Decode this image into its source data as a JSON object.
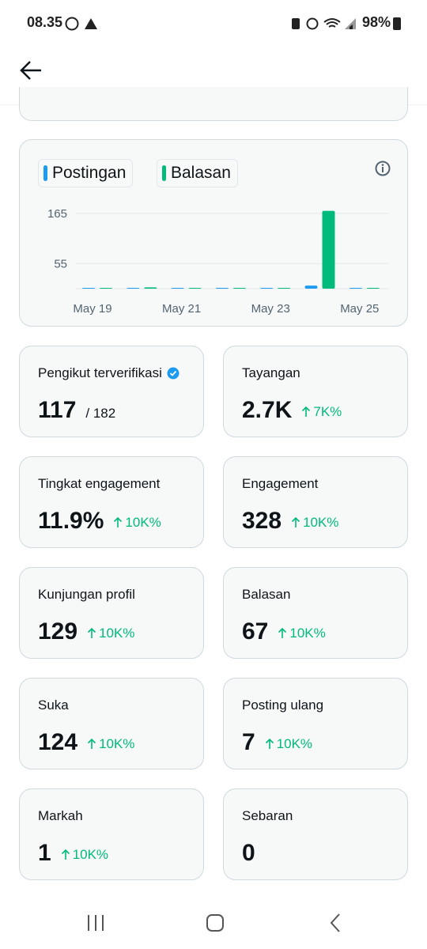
{
  "status_bar": {
    "time": "08.35",
    "battery": "98%"
  },
  "chart_data": {
    "type": "bar",
    "categories": [
      "May 19",
      null,
      "May 21",
      null,
      "May 23",
      null,
      "May 25"
    ],
    "series": [
      {
        "name": "Postingan",
        "color": "#1d9bf0",
        "values": [
          0,
          0,
          0,
          0,
          0,
          5,
          0
        ]
      },
      {
        "name": "Balasan",
        "color": "#00ba7c",
        "values": [
          0,
          1,
          0,
          0,
          0,
          169,
          0
        ]
      }
    ],
    "ylim": [
      0,
      170
    ],
    "yticks": [
      55,
      165
    ],
    "grid": true
  },
  "stats": [
    {
      "label": "Pengikut terverifikasi",
      "value": "117",
      "sub": "/ 182"
    },
    {
      "label": "Tayangan",
      "value": "2.7K",
      "change": "7K%"
    },
    {
      "label": "Tingkat engagement",
      "value": "11.9%",
      "change": "10K%"
    },
    {
      "label": "Engagement",
      "value": "328",
      "change": "10K%"
    },
    {
      "label": "Kunjungan profil",
      "value": "129",
      "change": "10K%"
    },
    {
      "label": "Balasan",
      "value": "67",
      "change": "10K%"
    },
    {
      "label": "Suka",
      "value": "124",
      "change": "10K%"
    },
    {
      "label": "Posting ulang",
      "value": "7",
      "change": "10K%"
    },
    {
      "label": "Markah",
      "value": "1",
      "change": "10K%"
    },
    {
      "label": "Sebaran",
      "value": "0"
    }
  ]
}
